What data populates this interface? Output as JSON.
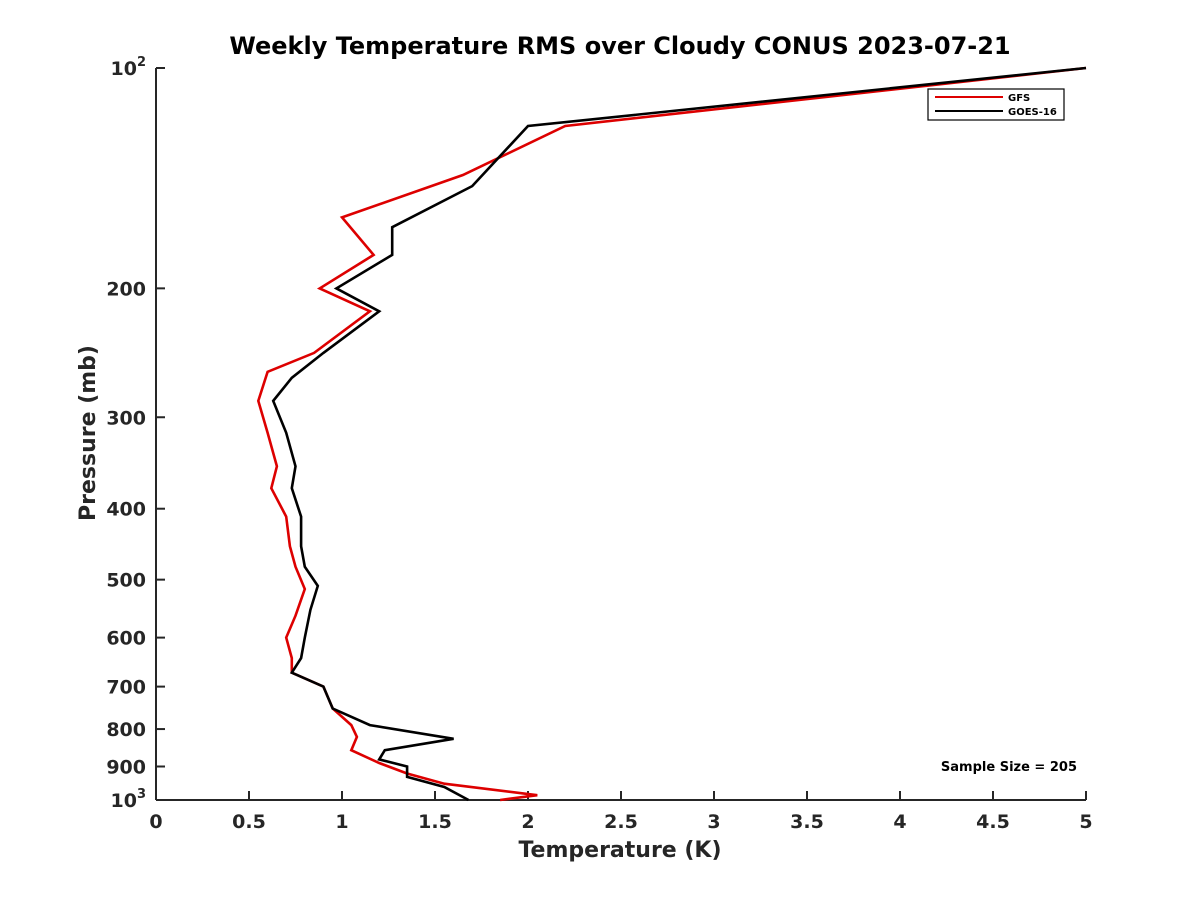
{
  "chart_data": {
    "type": "line",
    "title": "Weekly Temperature RMS over Cloudy CONUS 2023-07-21",
    "xlabel": "Temperature (K)",
    "ylabel": "Pressure (mb)",
    "xlim": [
      0,
      5
    ],
    "ylim": [
      100,
      1000
    ],
    "y_scale": "log",
    "y_reversed": true,
    "grid": false,
    "legend_position": "top-right",
    "x_ticks": [
      "0",
      "0.5",
      "1",
      "1.5",
      "2",
      "2.5",
      "3",
      "3.5",
      "4",
      "4.5",
      "5"
    ],
    "y_ticks": [
      {
        "value": 100,
        "base": "10",
        "sup": "2"
      },
      {
        "value": 200,
        "base": "200",
        "sup": ""
      },
      {
        "value": 300,
        "base": "300",
        "sup": ""
      },
      {
        "value": 400,
        "base": "400",
        "sup": ""
      },
      {
        "value": 500,
        "base": "500",
        "sup": ""
      },
      {
        "value": 600,
        "base": "600",
        "sup": ""
      },
      {
        "value": 700,
        "base": "700",
        "sup": ""
      },
      {
        "value": 800,
        "base": "800",
        "sup": ""
      },
      {
        "value": 900,
        "base": "900",
        "sup": ""
      },
      {
        "value": 1000,
        "base": "10",
        "sup": "3"
      }
    ],
    "series": [
      {
        "name": "GFS",
        "color": "#dd0000",
        "points": [
          [
            5.0,
            100
          ],
          [
            2.2,
            120
          ],
          [
            1.65,
            140
          ],
          [
            1.0,
            160
          ],
          [
            1.17,
            180
          ],
          [
            0.88,
            200
          ],
          [
            1.15,
            215
          ],
          [
            0.85,
            245
          ],
          [
            0.6,
            260
          ],
          [
            0.55,
            285
          ],
          [
            0.6,
            315
          ],
          [
            0.65,
            350
          ],
          [
            0.62,
            375
          ],
          [
            0.7,
            410
          ],
          [
            0.72,
            450
          ],
          [
            0.75,
            480
          ],
          [
            0.8,
            515
          ],
          [
            0.75,
            560
          ],
          [
            0.7,
            600
          ],
          [
            0.73,
            640
          ],
          [
            0.73,
            670
          ],
          [
            0.9,
            700
          ],
          [
            0.95,
            750
          ],
          [
            1.05,
            790
          ],
          [
            1.08,
            820
          ],
          [
            1.05,
            855
          ],
          [
            1.2,
            890
          ],
          [
            1.35,
            920
          ],
          [
            1.55,
            950
          ],
          [
            2.05,
            985
          ],
          [
            1.85,
            1000
          ]
        ]
      },
      {
        "name": "GOES-16",
        "color": "#000000",
        "points": [
          [
            5.0,
            100
          ],
          [
            2.0,
            120
          ],
          [
            1.7,
            145
          ],
          [
            1.27,
            165
          ],
          [
            1.27,
            180
          ],
          [
            0.97,
            200
          ],
          [
            1.2,
            215
          ],
          [
            0.9,
            245
          ],
          [
            0.73,
            265
          ],
          [
            0.63,
            285
          ],
          [
            0.7,
            315
          ],
          [
            0.75,
            350
          ],
          [
            0.73,
            375
          ],
          [
            0.78,
            410
          ],
          [
            0.78,
            450
          ],
          [
            0.8,
            480
          ],
          [
            0.87,
            510
          ],
          [
            0.83,
            550
          ],
          [
            0.8,
            600
          ],
          [
            0.78,
            640
          ],
          [
            0.73,
            670
          ],
          [
            0.9,
            700
          ],
          [
            0.95,
            750
          ],
          [
            1.15,
            790
          ],
          [
            1.6,
            825
          ],
          [
            1.23,
            855
          ],
          [
            1.2,
            880
          ],
          [
            1.35,
            900
          ],
          [
            1.35,
            930
          ],
          [
            1.55,
            960
          ],
          [
            1.68,
            1000
          ]
        ]
      }
    ],
    "annotation": "Sample Size = 205"
  }
}
